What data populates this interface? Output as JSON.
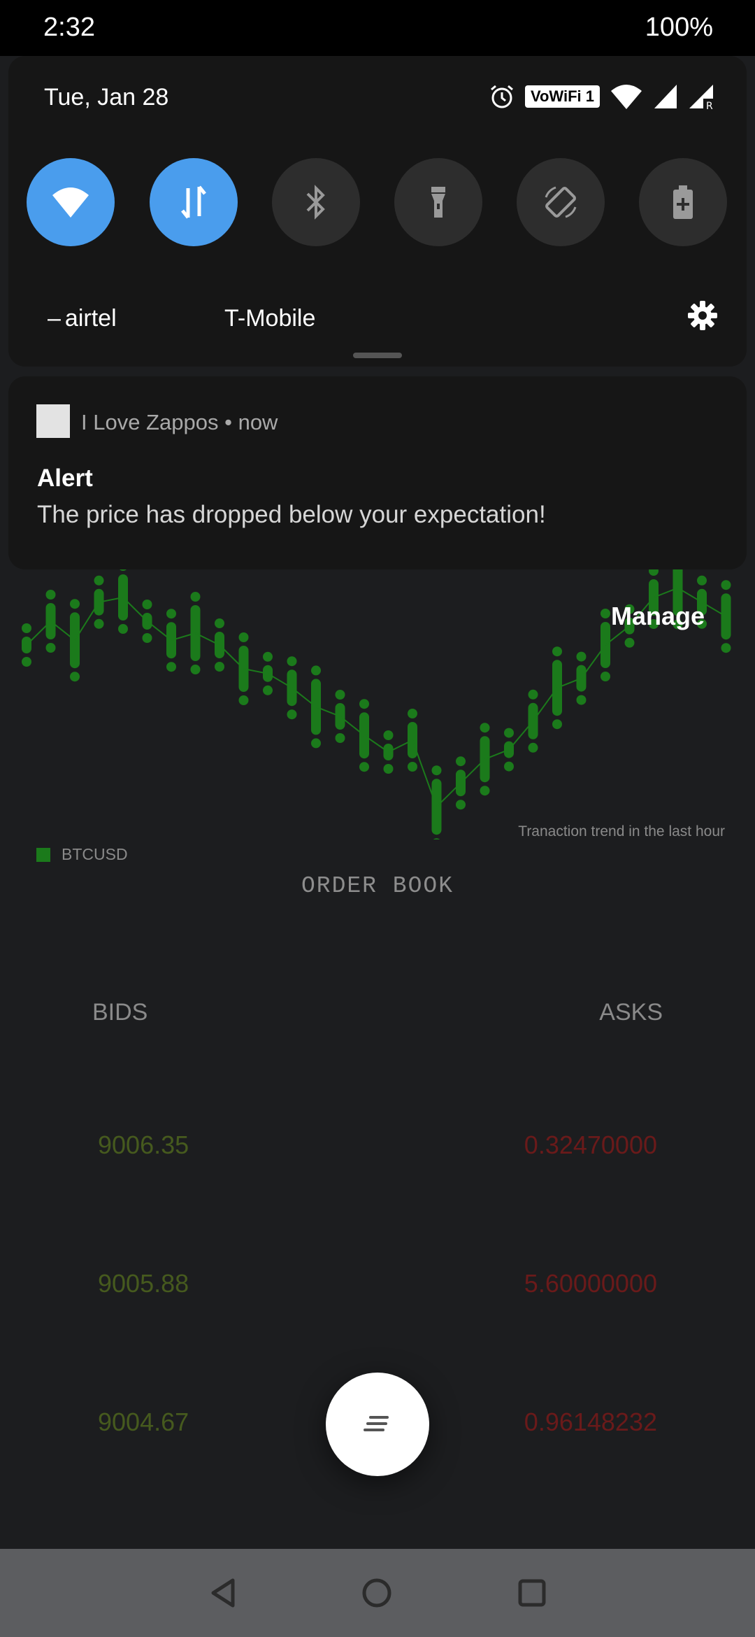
{
  "status_bar": {
    "time": "2:32",
    "battery": "100%"
  },
  "quick_settings": {
    "date": "Tue, Jan 28",
    "vowifi_badge": "VoWiFi 1",
    "tiles": [
      {
        "name": "wifi",
        "state": "on"
      },
      {
        "name": "mobile-data",
        "state": "on"
      },
      {
        "name": "bluetooth",
        "state": "off"
      },
      {
        "name": "flashlight",
        "state": "off"
      },
      {
        "name": "auto-rotate",
        "state": "off"
      },
      {
        "name": "battery-saver",
        "state": "off"
      }
    ],
    "carrier_1": "airtel",
    "carrier_2": "T-Mobile"
  },
  "notification": {
    "app_name": "I Love Zappos",
    "separator": "•",
    "time": "now",
    "title": "Alert",
    "body": "The price has dropped below your expectation!",
    "manage_label": "Manage"
  },
  "chart": {
    "caption": "Tranaction trend in the last hour",
    "legend_label": "BTCUSD",
    "color": "#1b7a1b"
  },
  "order_book": {
    "title": "ORDER BOOK",
    "bids_label": "BIDS",
    "asks_label": "ASKS",
    "rows": [
      {
        "bid": "9006.35",
        "ask": "0.32470000"
      },
      {
        "bid": "9005.88",
        "ask": "5.60000000"
      },
      {
        "bid": "9004.67",
        "ask": "0.96148232"
      }
    ]
  },
  "colors": {
    "accent": "#4a9ded",
    "bid": "#465a1e",
    "ask": "#6a1a1a"
  }
}
